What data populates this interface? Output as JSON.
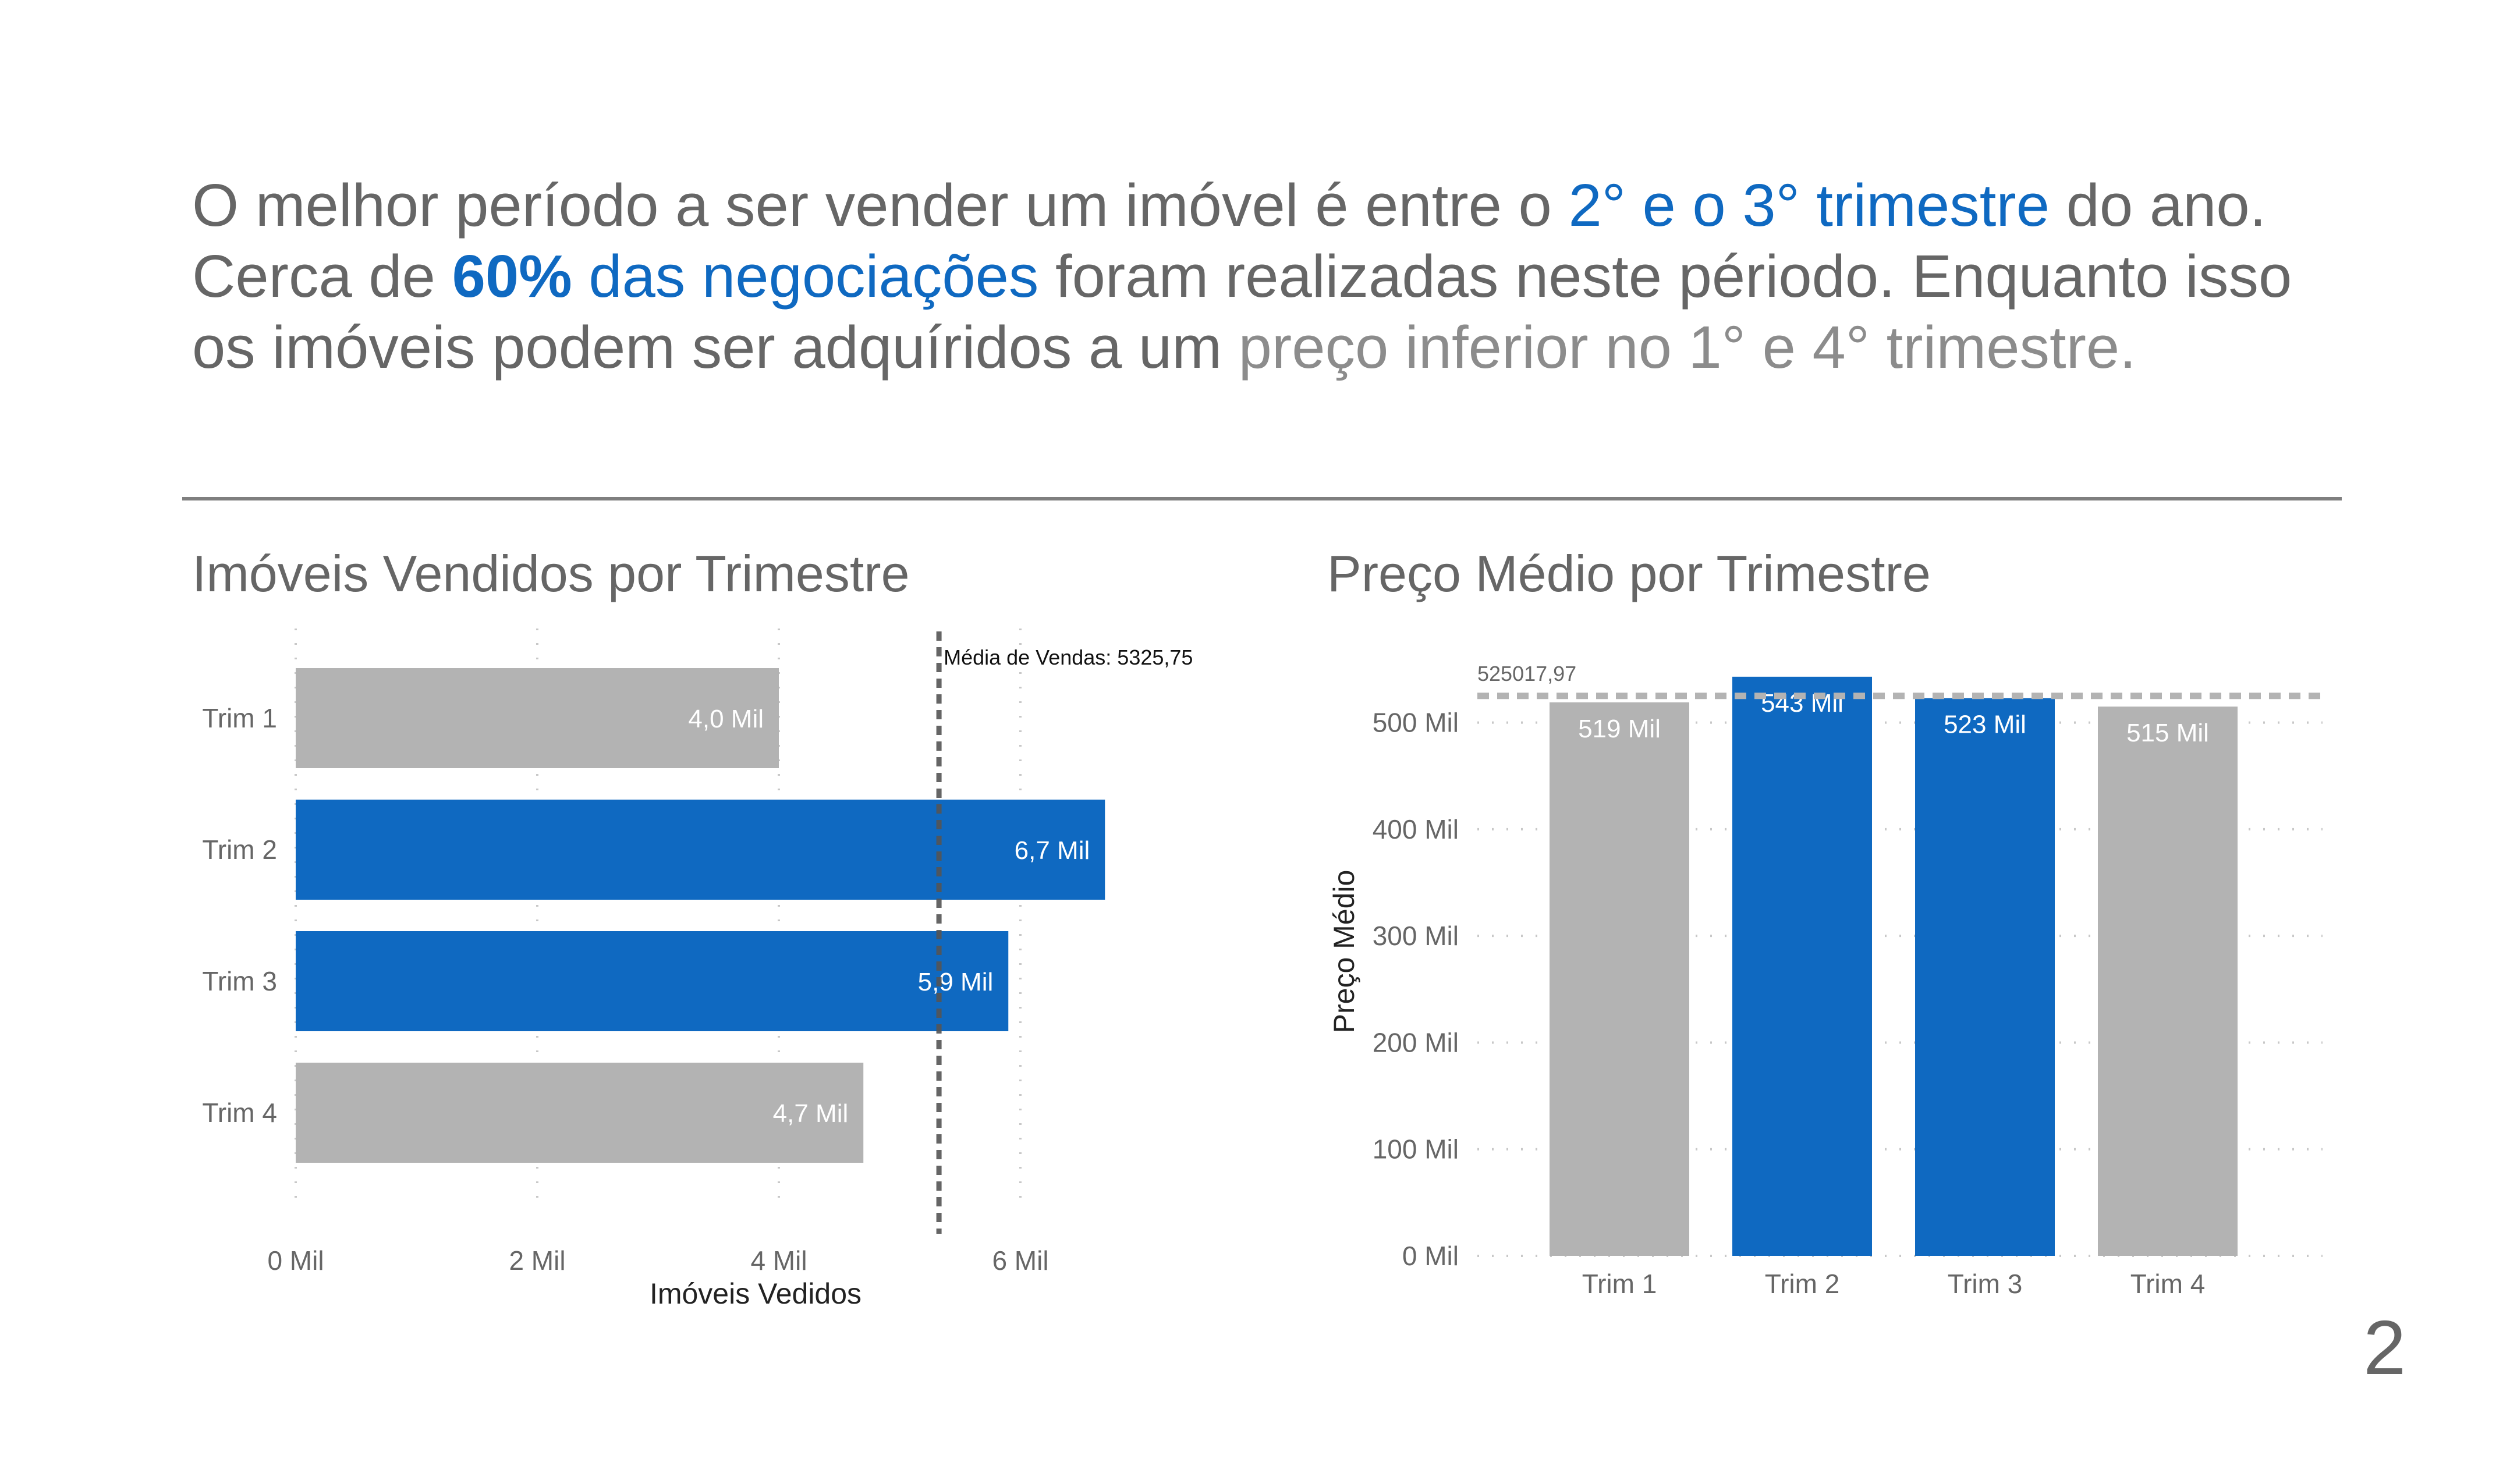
{
  "headline": {
    "part1": "O melhor período a ser vender um imóvel é entre o ",
    "highlight1": "2° e o 3° trimestre",
    "part2": " do ano. Cerca de ",
    "highlight2_bold": "60%",
    "highlight2": " das negociações",
    "part3": " foram realizadas neste périodo. Enquanto isso os imóveis podem ser adquíridos a um ",
    "highlight3": "preço inferior no 1° e 4° trimestre."
  },
  "page_number": "2",
  "colors": {
    "blue": "#0f69c1",
    "grey": "#b3b3b3",
    "text": "#666666"
  },
  "chart_data": [
    {
      "type": "bar",
      "orientation": "horizontal",
      "title": "Imóveis Vendidos por Trimestre",
      "xlabel": "Imóveis Vedidos",
      "ylabel": "",
      "categories": [
        "Trim 1",
        "Trim 2",
        "Trim 3",
        "Trim 4"
      ],
      "values": [
        4000,
        6700,
        5900,
        4700
      ],
      "data_labels": [
        "4,0 Mil",
        "6,7 Mil",
        "5,9 Mil",
        "4,7 Mil"
      ],
      "highlighted": [
        false,
        true,
        true,
        false
      ],
      "xlim": [
        0,
        8000
      ],
      "xticks": [
        0,
        2000,
        4000,
        6000
      ],
      "xtick_labels": [
        "0 Mil",
        "2 Mil",
        "4 Mil",
        "6 Mil"
      ],
      "reference_line": {
        "value": 5325.75,
        "label": "Média de Vendas: 5325,75"
      },
      "grid": true
    },
    {
      "type": "bar",
      "orientation": "vertical",
      "title": "Preço Médio por Trimestre",
      "xlabel": "",
      "ylabel": "Preço Médio",
      "categories": [
        "Trim 1",
        "Trim 2",
        "Trim 3",
        "Trim 4"
      ],
      "values": [
        519000,
        543000,
        523000,
        515000
      ],
      "data_labels": [
        "519 Mil",
        "543 Mil",
        "523 Mil",
        "515 Mil"
      ],
      "highlighted": [
        false,
        true,
        true,
        false
      ],
      "ylim": [
        0,
        550000
      ],
      "yticks": [
        0,
        100000,
        200000,
        300000,
        400000,
        500000
      ],
      "ytick_labels": [
        "0 Mil",
        "100 Mil",
        "200 Mil",
        "300 Mil",
        "400 Mil",
        "500 Mil"
      ],
      "reference_line": {
        "value": 525017.97,
        "label": "525017,97"
      },
      "grid": true
    }
  ]
}
